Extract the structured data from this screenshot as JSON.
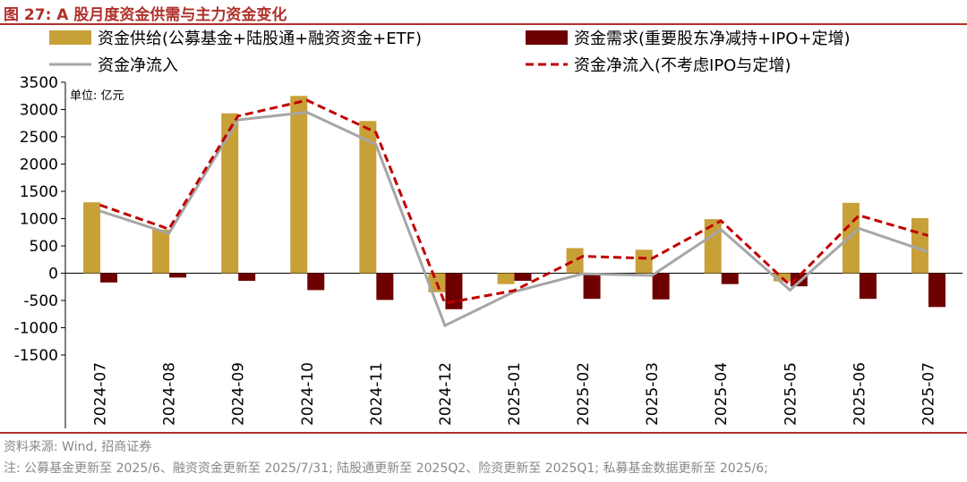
{
  "title": "图 27:  A 股月度资金供需与主力资金变化",
  "source": "资料来源: Wind, 招商证券",
  "note": "注: 公募基金更新至 2025/6、融资资金更新至 2025/7/31; 陆股通更新至 2025Q2、险资更新至 2025Q1; 私募基金数据更新至 2025/6;",
  "unit_label": "单位: 亿元",
  "chart_data": {
    "type": "bar",
    "categories": [
      "2024-07",
      "2024-08",
      "2024-09",
      "2024-10",
      "2024-11",
      "2024-12",
      "2025-01",
      "2025-02",
      "2025-03",
      "2025-04",
      "2025-05",
      "2025-06",
      "2025-07"
    ],
    "ylim": [
      -1500,
      3500
    ],
    "yticks": [
      -1500,
      -1000,
      -500,
      0,
      500,
      1000,
      1500,
      2000,
      2500,
      3000,
      3500
    ],
    "series": [
      {
        "name": "资金供给(公募基金+陆股通+融资资金+ETF)",
        "kind": "bar",
        "color": "#c8a038",
        "values": [
          1300,
          800,
          2930,
          3250,
          2790,
          -350,
          -200,
          460,
          430,
          990,
          -150,
          1290,
          1010
        ]
      },
      {
        "name": "资金需求(重要股东净减持+IPO+定增)",
        "kind": "bar",
        "color": "#6e0000",
        "values": [
          -170,
          -80,
          -140,
          -310,
          -490,
          -660,
          -140,
          -470,
          -480,
          -200,
          -240,
          -470,
          -620
        ]
      },
      {
        "name": "资金净流入",
        "kind": "line",
        "color": "#a6a6a6",
        "values": [
          1140,
          730,
          2810,
          2950,
          2360,
          -960,
          -340,
          -10,
          -40,
          800,
          -310,
          820,
          390
        ]
      },
      {
        "name": "资金净流入(不考虑IPO与定增)",
        "kind": "dashed",
        "color": "#c00000",
        "values": [
          1250,
          810,
          2880,
          3170,
          2580,
          -550,
          -320,
          310,
          270,
          960,
          -220,
          1060,
          690
        ]
      }
    ]
  }
}
